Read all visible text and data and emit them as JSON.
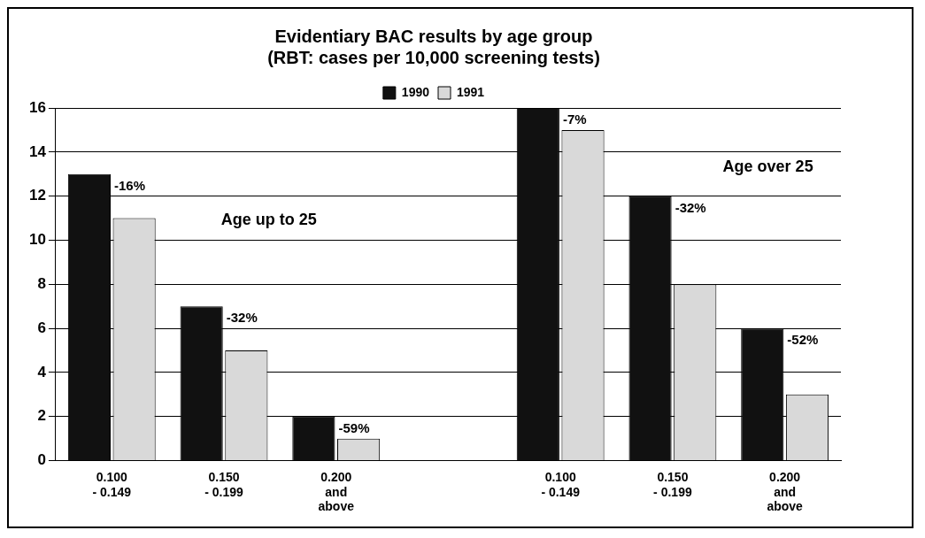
{
  "chart_data": {
    "type": "bar",
    "title": "Evidentiary BAC results by age group",
    "subtitle": "(RBT: cases per 10,000 screening tests)",
    "categories": [
      "0.100\n- 0.149",
      "0.150\n- 0.199",
      "0.200\nand\nabove",
      null,
      "0.100\n- 0.149",
      "0.150\n- 0.199",
      "0.200\nand\nabove"
    ],
    "series": [
      {
        "name": "1990",
        "color": "#111111",
        "values": [
          13,
          7,
          2,
          null,
          16,
          12,
          6
        ]
      },
      {
        "name": "1991",
        "color": "#d9d9d9",
        "values": [
          11,
          5,
          1,
          null,
          15,
          8,
          3
        ]
      }
    ],
    "annotations": [
      "Age up to 25",
      "Age over 25",
      "-16%",
      "-32%",
      "-59%",
      "-7%",
      "-32%",
      "-52%"
    ],
    "ylim": [
      0,
      16
    ],
    "yticks": [
      0,
      2,
      4,
      6,
      8,
      10,
      12,
      14,
      16
    ],
    "grid": "y",
    "legend": "top"
  }
}
